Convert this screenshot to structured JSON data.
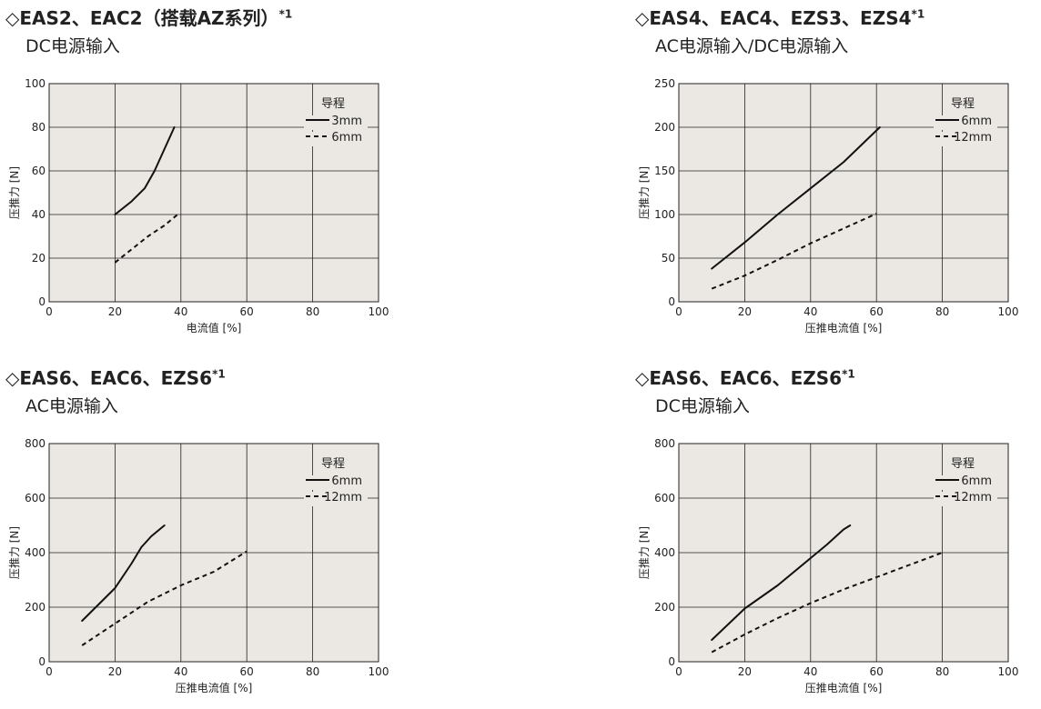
{
  "charts": [
    {
      "id": "c1",
      "title": "◇EAS2、EAC2（搭载AZ系列）",
      "title_sup": "*1",
      "subtitle": "DC电源输入",
      "chart_data": {
        "type": "line",
        "xlabel": "电流值 [%]",
        "ylabel": "压推力 [N]",
        "xlim": [
          0,
          100
        ],
        "ylim": [
          0,
          100
        ],
        "xticks": [
          0,
          20,
          40,
          60,
          80,
          100
        ],
        "yticks": [
          0,
          20,
          40,
          60,
          80,
          100
        ],
        "grid": true,
        "legend_title": "导程",
        "legend_position": "top-right",
        "series": [
          {
            "name": "3mm",
            "style": "solid",
            "x": [
              20,
              25,
              29,
              32,
              35,
              38
            ],
            "y": [
              40,
              46,
              52,
              60,
              70,
              80
            ]
          },
          {
            "name": "6mm",
            "style": "dashed",
            "x": [
              20,
              25,
              30,
              35,
              39
            ],
            "y": [
              18,
              24,
              30,
              35,
              40
            ]
          }
        ]
      }
    },
    {
      "id": "c2",
      "title": "◇EAS4、EAC4、EZS3、EZS4",
      "title_sup": "*1",
      "subtitle": "AC电源输入/DC电源输入",
      "chart_data": {
        "type": "line",
        "xlabel": "压推电流值 [%]",
        "ylabel": "压推力 [N]",
        "xlim": [
          0,
          100
        ],
        "ylim": [
          0,
          250
        ],
        "xticks": [
          0,
          20,
          40,
          60,
          80,
          100
        ],
        "yticks": [
          0,
          50,
          100,
          150,
          200,
          250
        ],
        "grid": true,
        "legend_title": "导程",
        "legend_position": "top-right",
        "series": [
          {
            "name": "6mm",
            "style": "solid",
            "x": [
              10,
              20,
              30,
              40,
              50,
              61
            ],
            "y": [
              38,
              68,
              100,
              130,
              160,
              200
            ]
          },
          {
            "name": "12mm",
            "style": "dashed",
            "x": [
              10,
              20,
              30,
              40,
              50,
              60
            ],
            "y": [
              15,
              30,
              48,
              67,
              84,
              101
            ]
          }
        ]
      }
    },
    {
      "id": "c3",
      "title": "◇EAS6、EAC6、EZS6",
      "title_sup": "*1",
      "subtitle": "AC电源输入",
      "chart_data": {
        "type": "line",
        "xlabel": "压推电流值 [%]",
        "ylabel": "压推力 [N]",
        "xlim": [
          0,
          100
        ],
        "ylim": [
          0,
          800
        ],
        "xticks": [
          0,
          20,
          40,
          60,
          80,
          100
        ],
        "yticks": [
          0,
          200,
          400,
          600,
          800
        ],
        "grid": true,
        "legend_title": "导程",
        "legend_position": "top-right",
        "series": [
          {
            "name": "6mm",
            "style": "solid",
            "x": [
              10,
              15,
              20,
              25,
              28,
              31,
              35
            ],
            "y": [
              150,
              210,
              270,
              360,
              420,
              460,
              500
            ]
          },
          {
            "name": "12mm",
            "style": "dashed",
            "x": [
              10,
              20,
              30,
              40,
              50,
              60
            ],
            "y": [
              60,
              140,
              220,
              280,
              330,
              405
            ]
          }
        ]
      }
    },
    {
      "id": "c4",
      "title": "◇EAS6、EAC6、EZS6",
      "title_sup": "*1",
      "subtitle": "DC电源输入",
      "chart_data": {
        "type": "line",
        "xlabel": "压推电流值 [%]",
        "ylabel": "压推力 [N]",
        "xlim": [
          0,
          100
        ],
        "ylim": [
          0,
          800
        ],
        "xticks": [
          0,
          20,
          40,
          60,
          80,
          100
        ],
        "yticks": [
          0,
          200,
          400,
          600,
          800
        ],
        "grid": true,
        "legend_title": "导程",
        "legend_position": "top-right",
        "series": [
          {
            "name": "6mm",
            "style": "solid",
            "x": [
              10,
              20,
              30,
              40,
              45,
              50,
              52
            ],
            "y": [
              80,
              195,
              280,
              380,
              430,
              485,
              500
            ]
          },
          {
            "name": "12mm",
            "style": "dashed",
            "x": [
              10,
              20,
              30,
              40,
              50,
              60,
              70,
              80
            ],
            "y": [
              35,
              100,
              160,
              215,
              265,
              310,
              355,
              400
            ]
          }
        ]
      }
    }
  ]
}
